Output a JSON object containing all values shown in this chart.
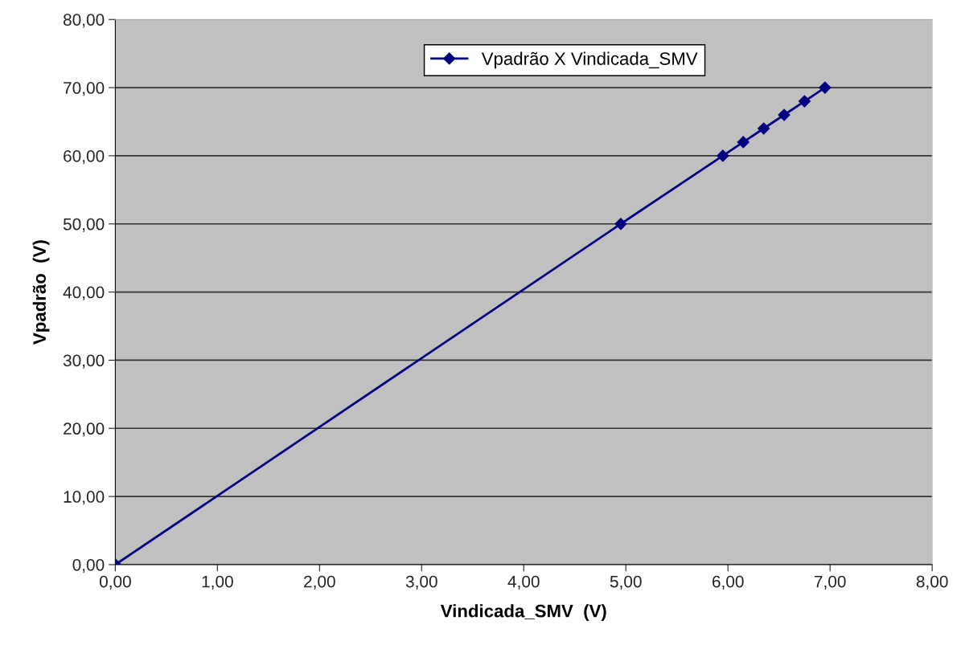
{
  "chart_data": {
    "type": "line",
    "xlabel": "Vindicada_SMV  (V)",
    "ylabel": "Vpadrão  (V)",
    "x": [
      0,
      4.95,
      5.95,
      6.15,
      6.35,
      6.55,
      6.75,
      6.95
    ],
    "series": [
      {
        "name": "Vpadrão X Vindicada_SMV",
        "color": "#000080",
        "values": [
          0,
          50,
          60,
          62,
          64,
          66,
          68,
          70
        ]
      }
    ],
    "xlim": [
      0,
      8
    ],
    "ylim": [
      0,
      80
    ],
    "xticks": [
      {
        "value": 0,
        "label": "0,00"
      },
      {
        "value": 1,
        "label": "1,00"
      },
      {
        "value": 2,
        "label": "2,00"
      },
      {
        "value": 3,
        "label": "3,00"
      },
      {
        "value": 4,
        "label": "4,00"
      },
      {
        "value": 5,
        "label": "5,00"
      },
      {
        "value": 6,
        "label": "6,00"
      },
      {
        "value": 7,
        "label": "7,00"
      },
      {
        "value": 8,
        "label": "8,00"
      }
    ],
    "yticks": [
      {
        "value": 0,
        "label": "0,00"
      },
      {
        "value": 10,
        "label": "10,00"
      },
      {
        "value": 20,
        "label": "20,00"
      },
      {
        "value": 30,
        "label": "30,00"
      },
      {
        "value": 40,
        "label": "40,00"
      },
      {
        "value": 50,
        "label": "50,00"
      },
      {
        "value": 60,
        "label": "60,00"
      },
      {
        "value": 70,
        "label": "70,00"
      },
      {
        "value": 80,
        "label": "80,00"
      }
    ],
    "grid": "y",
    "legend": "top",
    "marker": "diamond",
    "line_style": "solid"
  }
}
